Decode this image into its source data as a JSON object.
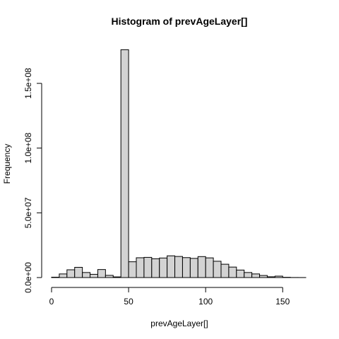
{
  "chart_data": {
    "type": "bar",
    "title": "Histogram of prevAgeLayer[]",
    "xlabel": "prevAgeLayer[]",
    "ylabel": "Frequency",
    "bin_width": 5,
    "bins_start": [
      0,
      5,
      10,
      15,
      20,
      25,
      30,
      35,
      40,
      45,
      50,
      55,
      60,
      65,
      70,
      75,
      80,
      85,
      90,
      95,
      100,
      105,
      110,
      115,
      120,
      125,
      130,
      135,
      140,
      145,
      150,
      155,
      160
    ],
    "values": [
      300000,
      2800000,
      6000000,
      7900000,
      3900000,
      2500000,
      6200000,
      1700000,
      500000,
      176000000,
      12200000,
      15300000,
      15600000,
      14500000,
      15100000,
      16800000,
      16300000,
      15400000,
      14800000,
      16200000,
      15200000,
      12600000,
      10300000,
      8100000,
      5800000,
      3900000,
      2800000,
      1600000,
      600000,
      1100000,
      200000,
      50000,
      30000
    ],
    "xlim": [
      0,
      165
    ],
    "ylim": [
      0,
      180000000
    ],
    "x_ticks": [
      0,
      50,
      100,
      150
    ],
    "x_tick_labels": [
      "0",
      "50",
      "100",
      "150"
    ],
    "y_ticks": [
      0,
      50000000,
      100000000,
      150000000
    ],
    "y_tick_labels": [
      "0.0e+00",
      "5.0e+07",
      "1.0e+08",
      "1.5e+08"
    ],
    "bar_color": "#d3d3d3",
    "grid": false
  }
}
